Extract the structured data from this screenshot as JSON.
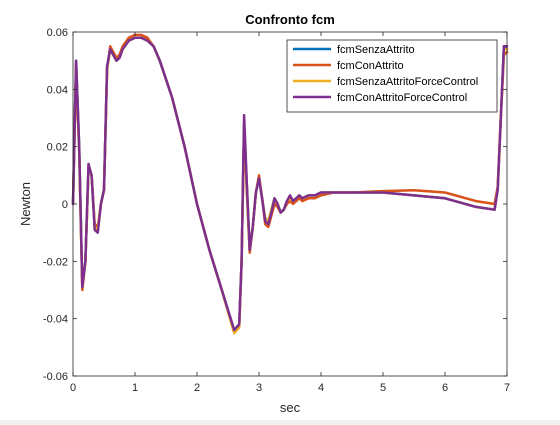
{
  "chart_data": {
    "type": "line",
    "title": "Confronto fcm",
    "xlabel": "sec",
    "ylabel": "Newton",
    "xlim": [
      0,
      7
    ],
    "ylim": [
      -0.06,
      0.06
    ],
    "xticks": [
      0,
      1,
      2,
      3,
      4,
      5,
      6,
      7
    ],
    "yticks": [
      -0.06,
      -0.04,
      -0.02,
      0,
      0.02,
      0.04,
      0.06
    ],
    "xtick_labels": [
      "0",
      "1",
      "2",
      "3",
      "4",
      "5",
      "6",
      "7"
    ],
    "ytick_labels": [
      "-0.06",
      "-0.04",
      "-0.02",
      "0",
      "0.02",
      "0.04",
      "0.06"
    ],
    "grid": false,
    "legend_position": "top-right",
    "series": [
      {
        "name": "fcmSenzaAttrito",
        "color": "#0072bd",
        "x": [
          0,
          0.05,
          0.1,
          0.15,
          0.2,
          0.25,
          0.3,
          0.35,
          0.4,
          0.45,
          0.5,
          0.55,
          0.6,
          0.65,
          0.7,
          0.75,
          0.8,
          0.9,
          1.0,
          1.1,
          1.2,
          1.3,
          1.4,
          1.6,
          1.8,
          2.0,
          2.2,
          2.4,
          2.6,
          2.68,
          2.72,
          2.76,
          2.8,
          2.85,
          2.9,
          2.95,
          3.0,
          3.05,
          3.1,
          3.15,
          3.2,
          3.25,
          3.3,
          3.35,
          3.4,
          3.45,
          3.5,
          3.55,
          3.6,
          3.65,
          3.7,
          3.8,
          3.9,
          4.0,
          4.2,
          4.5,
          5.0,
          5.5,
          6.0,
          6.5,
          6.8,
          6.85,
          6.9,
          6.95,
          7.0
        ],
        "y": [
          0,
          0.05,
          0.02,
          -0.028,
          -0.02,
          0.012,
          0.01,
          -0.008,
          -0.009,
          0.0,
          0.005,
          0.048,
          0.054,
          0.052,
          0.05,
          0.051,
          0.054,
          0.057,
          0.058,
          0.058,
          0.057,
          0.055,
          0.05,
          0.037,
          0.02,
          0.0,
          -0.016,
          -0.03,
          -0.044,
          -0.042,
          -0.02,
          0.028,
          0.008,
          -0.016,
          -0.008,
          0.004,
          0.009,
          0.002,
          -0.005,
          -0.006,
          -0.002,
          0.002,
          0.0,
          -0.003,
          -0.002,
          0.001,
          0.002,
          0.001,
          0.002,
          0.003,
          0.002,
          0.003,
          0.003,
          0.004,
          0.004,
          0.004,
          0.004,
          0.003,
          0.002,
          -0.001,
          -0.002,
          0.005,
          0.03,
          0.055,
          0.054
        ]
      },
      {
        "name": "fcmConAttrito",
        "color": "#d95319",
        "x": [
          0,
          0.05,
          0.1,
          0.15,
          0.2,
          0.25,
          0.3,
          0.35,
          0.4,
          0.45,
          0.5,
          0.55,
          0.6,
          0.65,
          0.7,
          0.75,
          0.8,
          0.9,
          1.0,
          1.1,
          1.2,
          1.3,
          1.4,
          1.6,
          1.8,
          2.0,
          2.2,
          2.4,
          2.6,
          2.68,
          2.72,
          2.76,
          2.8,
          2.85,
          2.9,
          2.95,
          3.0,
          3.05,
          3.1,
          3.15,
          3.2,
          3.25,
          3.3,
          3.35,
          3.4,
          3.45,
          3.5,
          3.55,
          3.6,
          3.65,
          3.7,
          3.8,
          3.9,
          4.0,
          4.2,
          4.5,
          5.0,
          5.5,
          6.0,
          6.5,
          6.8,
          6.85,
          6.9,
          6.95,
          7.0
        ],
        "y": [
          0,
          0.048,
          0.018,
          -0.03,
          -0.02,
          0.012,
          0.01,
          -0.007,
          -0.008,
          0.0,
          0.005,
          0.047,
          0.055,
          0.053,
          0.051,
          0.052,
          0.055,
          0.058,
          0.059,
          0.059,
          0.058,
          0.055,
          0.05,
          0.037,
          0.02,
          0.0,
          -0.016,
          -0.03,
          -0.045,
          -0.043,
          -0.02,
          0.026,
          0.006,
          -0.017,
          -0.008,
          0.004,
          0.01,
          0.002,
          -0.007,
          -0.008,
          -0.004,
          0.0,
          -0.001,
          -0.003,
          -0.002,
          0.0,
          0.001,
          0.0,
          0.001,
          0.002,
          0.001,
          0.002,
          0.002,
          0.003,
          0.004,
          0.004,
          0.0045,
          0.0048,
          0.004,
          0.001,
          0.0,
          0.006,
          0.03,
          0.052,
          0.053
        ]
      },
      {
        "name": "fcmSenzaAttritoForceControl",
        "color": "#edb120",
        "x": [
          0,
          0.05,
          0.1,
          0.15,
          0.2,
          0.25,
          0.3,
          0.35,
          0.4,
          0.45,
          0.5,
          0.55,
          0.6,
          0.65,
          0.7,
          0.75,
          0.8,
          0.9,
          1.0,
          1.1,
          1.2,
          1.3,
          1.4,
          1.6,
          1.8,
          2.0,
          2.2,
          2.4,
          2.6,
          2.68,
          2.72,
          2.76,
          2.8,
          2.85,
          2.9,
          2.95,
          3.0,
          3.05,
          3.1,
          3.15,
          3.2,
          3.25,
          3.3,
          3.35,
          3.4,
          3.45,
          3.5,
          3.55,
          3.6,
          3.65,
          3.7,
          3.8,
          3.9,
          4.0,
          4.2,
          4.5,
          5.0,
          5.5,
          6.0,
          6.5,
          6.8,
          6.85,
          6.9,
          6.95,
          7.0
        ],
        "y": [
          0,
          0.049,
          0.019,
          -0.029,
          -0.02,
          0.012,
          0.01,
          -0.008,
          -0.009,
          0.0,
          0.005,
          0.047,
          0.054,
          0.052,
          0.05,
          0.051,
          0.054,
          0.057,
          0.058,
          0.058,
          0.057,
          0.055,
          0.05,
          0.037,
          0.02,
          0.0,
          -0.016,
          -0.03,
          -0.045,
          -0.043,
          -0.02,
          0.027,
          0.008,
          -0.016,
          -0.008,
          0.004,
          0.009,
          0.002,
          -0.005,
          -0.006,
          -0.002,
          0.002,
          0.0,
          -0.003,
          -0.002,
          0.001,
          0.002,
          0.001,
          0.002,
          0.003,
          0.002,
          0.003,
          0.003,
          0.004,
          0.004,
          0.004,
          0.004,
          0.003,
          0.002,
          -0.001,
          -0.002,
          0.005,
          0.03,
          0.054,
          0.054
        ]
      },
      {
        "name": "fcmConAttritoForceControl",
        "color": "#7e2f8e",
        "x": [
          0,
          0.05,
          0.1,
          0.15,
          0.2,
          0.25,
          0.3,
          0.35,
          0.4,
          0.45,
          0.5,
          0.55,
          0.6,
          0.65,
          0.7,
          0.75,
          0.8,
          0.9,
          1.0,
          1.1,
          1.2,
          1.3,
          1.4,
          1.6,
          1.8,
          2.0,
          2.2,
          2.4,
          2.6,
          2.68,
          2.72,
          2.76,
          2.8,
          2.85,
          2.9,
          2.95,
          3.0,
          3.05,
          3.1,
          3.15,
          3.2,
          3.25,
          3.3,
          3.35,
          3.4,
          3.45,
          3.5,
          3.55,
          3.6,
          3.65,
          3.7,
          3.8,
          3.9,
          4.0,
          4.2,
          4.5,
          5.0,
          5.5,
          6.0,
          6.5,
          6.8,
          6.85,
          6.9,
          6.95,
          7.0
        ],
        "y": [
          0,
          0.05,
          0.02,
          -0.029,
          -0.02,
          0.014,
          0.01,
          -0.009,
          -0.01,
          0.0,
          0.005,
          0.048,
          0.054,
          0.052,
          0.05,
          0.051,
          0.054,
          0.057,
          0.058,
          0.058,
          0.057,
          0.055,
          0.05,
          0.037,
          0.02,
          0.0,
          -0.016,
          -0.03,
          -0.044,
          -0.042,
          -0.02,
          0.031,
          0.009,
          -0.016,
          -0.008,
          0.004,
          0.009,
          0.002,
          -0.006,
          -0.007,
          -0.003,
          0.002,
          0.0,
          -0.003,
          -0.002,
          0.001,
          0.003,
          0.001,
          0.002,
          0.003,
          0.002,
          0.003,
          0.003,
          0.004,
          0.004,
          0.004,
          0.004,
          0.003,
          0.002,
          -0.001,
          -0.002,
          0.005,
          0.03,
          0.055,
          0.055
        ]
      }
    ]
  }
}
